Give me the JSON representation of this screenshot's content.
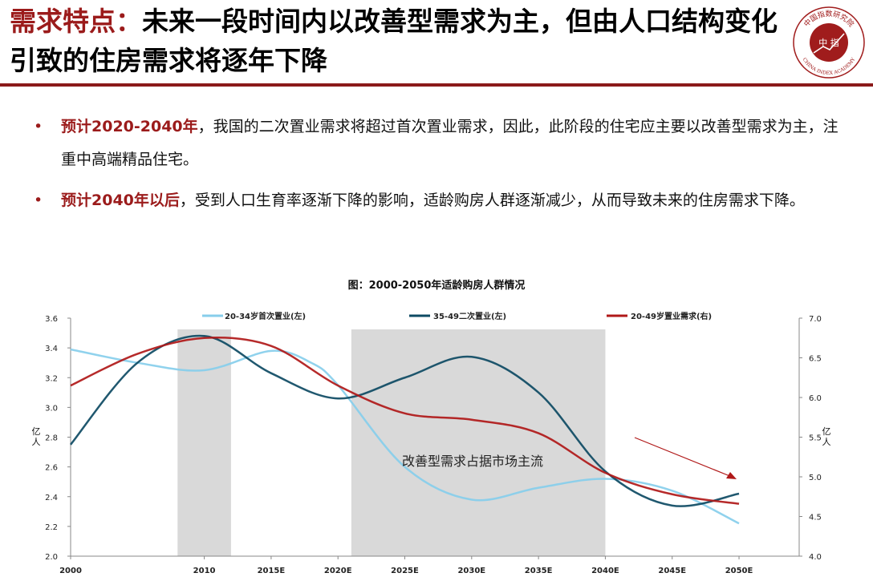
{
  "header": {
    "title_highlight": "需求特点：",
    "title_rest": "未来一段时间内以改善型需求为主，但由人口结构变化引致的住房需求将逐年下降",
    "logo": {
      "center_text": "中 指",
      "ring_text_top": "中国指数研究院",
      "ring_text_bottom": "CHINA INDEX ACADEMY"
    }
  },
  "bullets": [
    {
      "lead": "预计2020-2040年",
      "text": "，我国的二次置业需求将超过首次置业需求，因此，此阶段的住宅应主要以改善型需求为主，注重中高端精品住宅。"
    },
    {
      "lead": "预计2040年以后",
      "text": "，受到人口生育率逐渐下降的影响，适龄购房人群逐渐减少，从而导致未来的住房需求下降。"
    }
  ],
  "bullet_symbol": "•",
  "chart_data": {
    "type": "line",
    "title": "图：2000-2050年适龄购房人群情况",
    "categories": [
      "2000",
      "2010",
      "2015E",
      "2020E",
      "2025E",
      "2030E",
      "2035E",
      "2040E",
      "2045E",
      "2050E"
    ],
    "x": [
      2000,
      2010,
      2015,
      2020,
      2025,
      2030,
      2035,
      2040,
      2045,
      2050
    ],
    "ylabel_left": "亿人",
    "ylabel_right": "亿人",
    "ylim_left": [
      2.0,
      3.6
    ],
    "yticks_left": [
      "2.0",
      "2.2",
      "2.4",
      "2.6",
      "2.8",
      "3.0",
      "3.2",
      "3.4",
      "3.6"
    ],
    "ylim_right": [
      4.0,
      7.0
    ],
    "yticks_right": [
      "4.0",
      "4.5",
      "5.0",
      "5.5",
      "6.0",
      "6.5",
      "7.0"
    ],
    "series": [
      {
        "name": "20-34岁首次置业(左)",
        "axis": "left",
        "color": "#87ceeb",
        "points": [
          [
            2000,
            3.39
          ],
          [
            2005,
            3.3
          ],
          [
            2010,
            3.25
          ],
          [
            2015,
            3.38
          ],
          [
            2018,
            3.3
          ],
          [
            2020,
            3.15
          ],
          [
            2025,
            2.6
          ],
          [
            2030,
            2.38
          ],
          [
            2035,
            2.46
          ],
          [
            2040,
            2.52
          ],
          [
            2045,
            2.44
          ],
          [
            2050,
            2.22
          ]
        ]
      },
      {
        "name": "35-49二次置业(左)",
        "axis": "left",
        "color": "#0d4a63",
        "points": [
          [
            2000,
            2.75
          ],
          [
            2005,
            3.3
          ],
          [
            2010,
            3.48
          ],
          [
            2015,
            3.23
          ],
          [
            2020,
            3.06
          ],
          [
            2025,
            3.2
          ],
          [
            2030,
            3.34
          ],
          [
            2035,
            3.1
          ],
          [
            2040,
            2.57
          ],
          [
            2045,
            2.34
          ],
          [
            2050,
            2.42
          ]
        ]
      },
      {
        "name": "20-49岁置业需求(右)",
        "axis": "right",
        "color": "#b01818",
        "points": [
          [
            2000,
            6.15
          ],
          [
            2005,
            6.55
          ],
          [
            2010,
            6.75
          ],
          [
            2015,
            6.65
          ],
          [
            2020,
            6.15
          ],
          [
            2025,
            5.8
          ],
          [
            2030,
            5.72
          ],
          [
            2035,
            5.55
          ],
          [
            2040,
            5.05
          ],
          [
            2045,
            4.78
          ],
          [
            2050,
            4.66
          ]
        ]
      }
    ],
    "shaded_ranges": [
      [
        2008,
        2012
      ],
      [
        2021,
        2040
      ]
    ],
    "annotation": "改善型需求占据市场主流",
    "legend": "top",
    "grid": false
  }
}
